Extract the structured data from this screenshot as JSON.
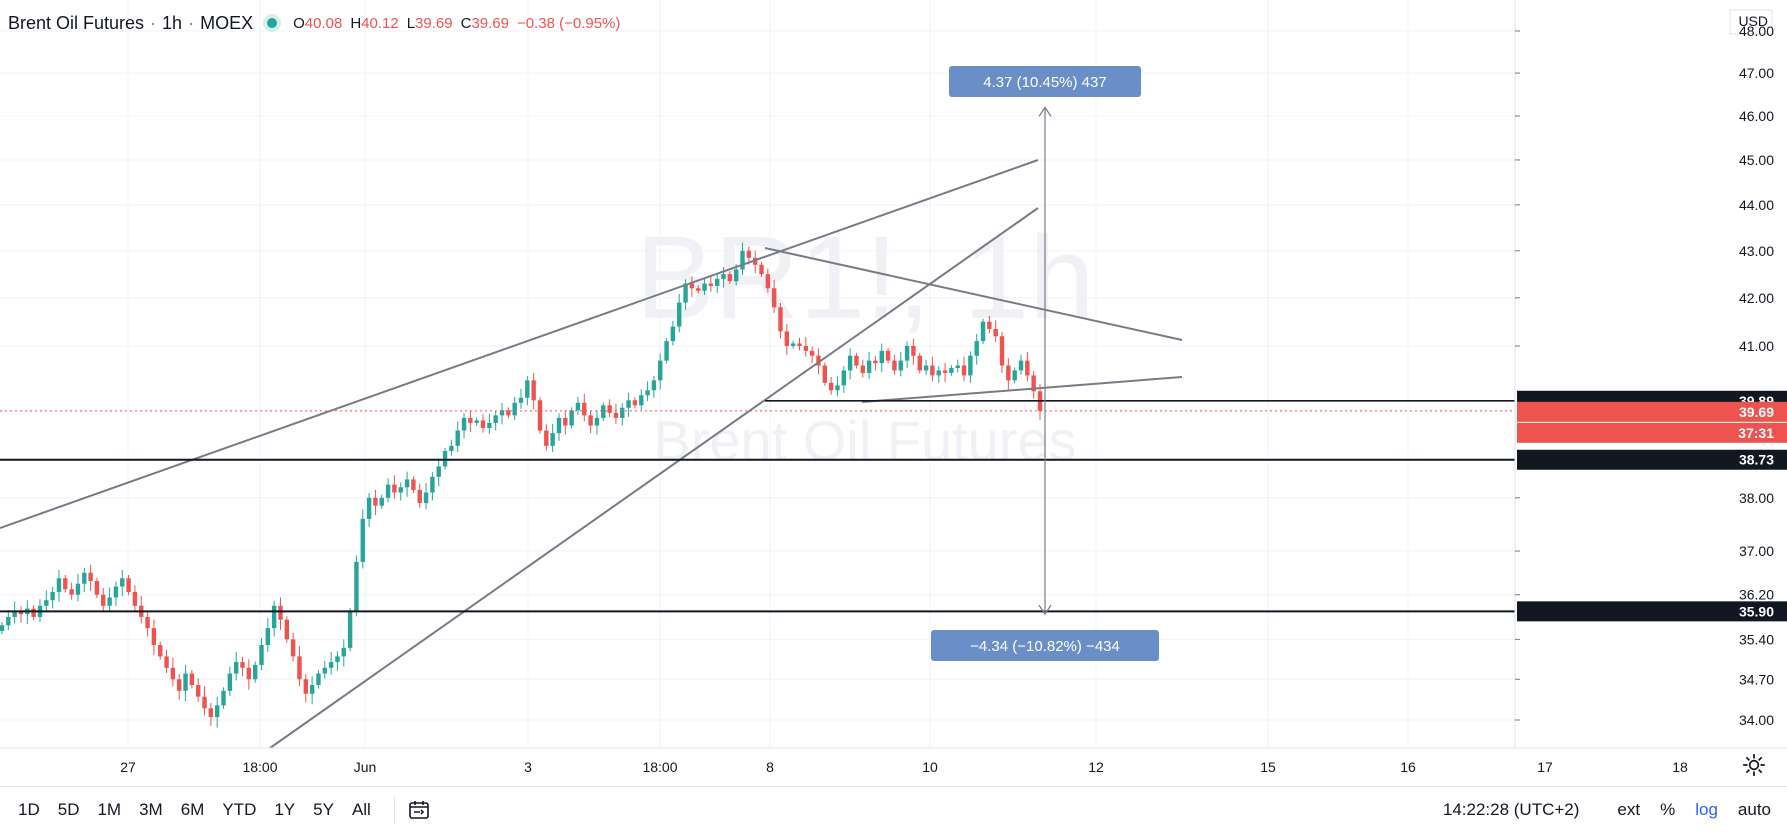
{
  "header": {
    "symbol": "Brent Oil Futures",
    "interval": "1h",
    "exchange": "MOEX",
    "ohlc": {
      "o_label": "O",
      "o": "40.08",
      "h_label": "H",
      "h": "40.12",
      "l_label": "L",
      "l": "39.69",
      "c_label": "C",
      "c": "39.69",
      "change": "−0.38 (−0.95%)"
    }
  },
  "watermark": {
    "symbol": "BR1!, 1h",
    "name": "Brent Oil Futures"
  },
  "currency": "USD",
  "bottom_bar": {
    "ranges": [
      "1D",
      "5D",
      "1M",
      "3M",
      "6M",
      "YTD",
      "1Y",
      "5Y",
      "All"
    ],
    "clock": "14:22:28 (UTC+2)",
    "tools": [
      "ext",
      "%",
      "log",
      "auto"
    ]
  },
  "colors": {
    "up": "#26a69a",
    "down": "#ef5350",
    "drawing": "#787b86",
    "measure": "#6a8fc8",
    "hline": "#131722"
  },
  "chart_data": {
    "type": "candlestick",
    "title": "Brent Oil Futures · 1h · MOEX",
    "y_scale": "log",
    "ylim": [
      33.6,
      48.2
    ],
    "y_ticks": [
      "48.00",
      "47.00",
      "46.00",
      "45.00",
      "44.00",
      "43.00",
      "42.00",
      "41.00",
      "38.00",
      "37.00",
      "36.20",
      "35.40",
      "34.70",
      "34.00"
    ],
    "x_ticks": [
      "27",
      "18:00",
      "Jun",
      "3",
      "18:00",
      "8",
      "10",
      "12",
      "15",
      "16",
      "17",
      "18"
    ],
    "closes": [
      35.65,
      35.8,
      35.9,
      35.85,
      35.95,
      35.8,
      36.0,
      36.1,
      36.25,
      36.5,
      36.3,
      36.2,
      36.4,
      36.6,
      36.45,
      36.2,
      36.0,
      36.15,
      36.35,
      36.5,
      36.25,
      36.0,
      35.8,
      35.6,
      35.3,
      35.1,
      34.9,
      34.7,
      34.5,
      34.8,
      34.6,
      34.4,
      34.2,
      34.05,
      34.25,
      34.5,
      34.8,
      35.0,
      34.9,
      34.7,
      34.95,
      35.3,
      35.6,
      36.0,
      35.75,
      35.4,
      35.1,
      34.7,
      34.45,
      34.6,
      34.8,
      34.9,
      35.0,
      35.1,
      35.25,
      35.9,
      36.8,
      37.6,
      38.0,
      37.85,
      38.0,
      38.25,
      38.1,
      38.2,
      38.35,
      38.15,
      37.9,
      38.1,
      38.4,
      38.6,
      38.9,
      39.0,
      39.3,
      39.55,
      39.45,
      39.5,
      39.35,
      39.45,
      39.6,
      39.7,
      39.6,
      39.85,
      39.95,
      40.3,
      39.9,
      39.3,
      39.0,
      39.25,
      39.55,
      39.4,
      39.7,
      39.85,
      39.6,
      39.4,
      39.55,
      39.8,
      39.65,
      39.55,
      39.75,
      39.9,
      39.8,
      40.0,
      40.1,
      40.3,
      40.7,
      41.1,
      41.4,
      41.9,
      42.3,
      42.2,
      42.15,
      42.3,
      42.25,
      42.4,
      42.5,
      42.35,
      42.6,
      43.0,
      42.85,
      42.7,
      42.5,
      42.2,
      41.8,
      41.3,
      41.0,
      41.05,
      41.0,
      40.9,
      40.8,
      40.6,
      40.25,
      40.1,
      40.2,
      40.5,
      40.8,
      40.6,
      40.45,
      40.7,
      40.65,
      40.9,
      40.7,
      40.5,
      40.7,
      41.0,
      40.8,
      40.5,
      40.6,
      40.4,
      40.5,
      40.45,
      40.55,
      40.6,
      40.4,
      40.8,
      41.1,
      41.5,
      41.35,
      41.2,
      40.6,
      40.3,
      40.5,
      40.7,
      40.4,
      40.08,
      39.69
    ],
    "annotations": {
      "horizontal_lines": [
        {
          "price": 39.89,
          "label": "39.89"
        },
        {
          "price": 38.73,
          "label": "38.73"
        },
        {
          "price": 35.9,
          "label": "35.90"
        }
      ],
      "last_price": {
        "price": 39.69,
        "label": "39.69",
        "countdown": "37:31"
      },
      "measure_up": "4.37 (10.45%) 437",
      "measure_down": "−4.34 (−10.82%) −434"
    }
  }
}
